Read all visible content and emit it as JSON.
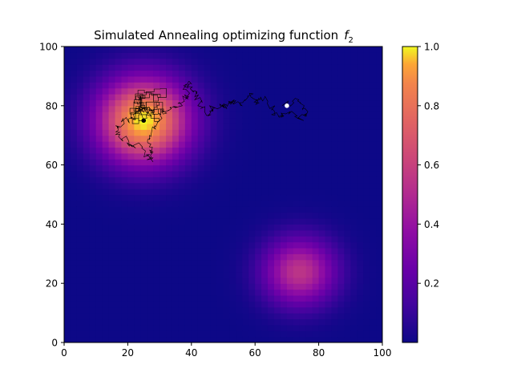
{
  "chart_data": {
    "type": "heatmap",
    "title": "Simulated Annealing optimizing function",
    "title_math_symbol": "f",
    "title_math_subscript": "2",
    "xlabel": "",
    "ylabel": "",
    "xlim": [
      0,
      100
    ],
    "ylim": [
      0,
      100
    ],
    "x_ticks": [
      "0",
      "20",
      "40",
      "60",
      "80",
      "100"
    ],
    "y_ticks": [
      "0",
      "20",
      "40",
      "60",
      "80",
      "100"
    ],
    "grid": false,
    "colormap": "plasma",
    "colorbar": {
      "range": [
        0,
        1.0
      ],
      "ticks": [
        "0.2",
        "0.4",
        "0.6",
        "0.8",
        "1.0"
      ]
    },
    "peaks": [
      {
        "x": 25,
        "y": 75,
        "height": 1.0,
        "sigma": 10
      },
      {
        "x": 74,
        "y": 24,
        "height": 0.55,
        "sigma": 8
      }
    ],
    "start_point": {
      "x": 70,
      "y": 80,
      "color": "#ffffff"
    },
    "end_point": {
      "x": 25,
      "y": 75,
      "color": "#000000"
    },
    "path_waypoints": [
      [
        70,
        80
      ],
      [
        73,
        82
      ],
      [
        76,
        78
      ],
      [
        74,
        75
      ],
      [
        70,
        78
      ],
      [
        67,
        76
      ],
      [
        65,
        80
      ],
      [
        62,
        83
      ],
      [
        60,
        81
      ],
      [
        58,
        84
      ],
      [
        55,
        80
      ],
      [
        52,
        82
      ],
      [
        50,
        79
      ],
      [
        47,
        80
      ],
      [
        45,
        77
      ],
      [
        43,
        81
      ],
      [
        41,
        85
      ],
      [
        39,
        88
      ],
      [
        38,
        83
      ],
      [
        36,
        80
      ],
      [
        33,
        79
      ],
      [
        30,
        77
      ],
      [
        28,
        72
      ],
      [
        26,
        68
      ],
      [
        28,
        64
      ],
      [
        27,
        61
      ],
      [
        24,
        66
      ],
      [
        20,
        68
      ],
      [
        16,
        71
      ],
      [
        18,
        74
      ],
      [
        22,
        76
      ],
      [
        24,
        80
      ],
      [
        27,
        78
      ],
      [
        25,
        75
      ]
    ]
  },
  "colors": {
    "trajectory": "#000000",
    "frame": "#000000"
  }
}
